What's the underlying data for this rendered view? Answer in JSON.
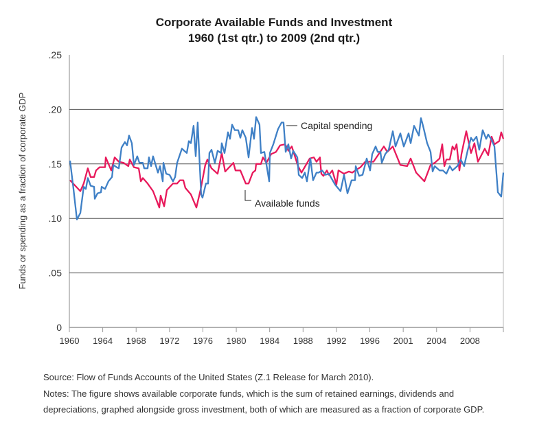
{
  "chart_data": {
    "type": "line",
    "title": "Corporate Available Funds and Investment",
    "subtitle": "1960 (1st qtr.) to 2009 (2nd qtr.)",
    "xlabel": "",
    "ylabel": "Funds or spending as a fraction of corporate GDP",
    "xlim": [
      1960,
      2009.5
    ],
    "ylim": [
      0,
      0.25
    ],
    "x_tick_labels": [
      "1960",
      "1964",
      "1968",
      "1972",
      "1976",
      "1980",
      "1984",
      "1988",
      "1992",
      "1996",
      "2001",
      "2004",
      "2008"
    ],
    "y_ticks": [
      0,
      0.05,
      0.1,
      0.15,
      0.2,
      0.25
    ],
    "y_tick_labels": [
      "0",
      ".05",
      ".10",
      ".15",
      ".20",
      ".25"
    ],
    "grid": "horizontal",
    "colors": {
      "capital_spending": "#3f80c6",
      "available_funds": "#e8195b",
      "grid": "#555555"
    },
    "series": [
      {
        "name": "Capital spending",
        "color": "#3f80c6",
        "points": [
          [
            1960.08,
            0.153
          ],
          [
            1960.47,
            0.127
          ],
          [
            1960.86,
            0.099
          ],
          [
            1961.25,
            0.105
          ],
          [
            1961.64,
            0.129
          ],
          [
            1961.88,
            0.127
          ],
          [
            1962.11,
            0.137
          ],
          [
            1962.43,
            0.13
          ],
          [
            1962.82,
            0.129
          ],
          [
            1962.9,
            0.118
          ],
          [
            1963.21,
            0.123
          ],
          [
            1963.6,
            0.124
          ],
          [
            1963.68,
            0.129
          ],
          [
            1964.07,
            0.127
          ],
          [
            1964.46,
            0.134
          ],
          [
            1964.86,
            0.138
          ],
          [
            1965.01,
            0.149
          ],
          [
            1965.4,
            0.147
          ],
          [
            1965.64,
            0.146
          ],
          [
            1965.95,
            0.165
          ],
          [
            1966.34,
            0.17
          ],
          [
            1966.58,
            0.167
          ],
          [
            1966.81,
            0.176
          ],
          [
            1967.13,
            0.169
          ],
          [
            1967.36,
            0.149
          ],
          [
            1967.75,
            0.157
          ],
          [
            1967.99,
            0.151
          ],
          [
            1968.38,
            0.151
          ],
          [
            1968.54,
            0.146
          ],
          [
            1968.93,
            0.146
          ],
          [
            1969.08,
            0.156
          ],
          [
            1969.32,
            0.148
          ],
          [
            1969.55,
            0.157
          ],
          [
            1970.1,
            0.142
          ],
          [
            1970.34,
            0.148
          ],
          [
            1970.65,
            0.134
          ],
          [
            1970.73,
            0.151
          ],
          [
            1971.04,
            0.141
          ],
          [
            1971.43,
            0.14
          ],
          [
            1971.82,
            0.134
          ],
          [
            1972.06,
            0.138
          ],
          [
            1972.29,
            0.151
          ],
          [
            1972.84,
            0.164
          ],
          [
            1973.39,
            0.16
          ],
          [
            1973.63,
            0.171
          ],
          [
            1973.86,
            0.169
          ],
          [
            1974.17,
            0.185
          ],
          [
            1974.41,
            0.157
          ],
          [
            1974.64,
            0.188
          ],
          [
            1975.03,
            0.122
          ],
          [
            1975.19,
            0.119
          ],
          [
            1975.58,
            0.132
          ],
          [
            1975.82,
            0.132
          ],
          [
            1975.97,
            0.16
          ],
          [
            1976.21,
            0.163
          ],
          [
            1976.6,
            0.151
          ],
          [
            1976.91,
            0.162
          ],
          [
            1977.3,
            0.16
          ],
          [
            1977.38,
            0.169
          ],
          [
            1977.7,
            0.16
          ],
          [
            1978.09,
            0.179
          ],
          [
            1978.32,
            0.173
          ],
          [
            1978.56,
            0.186
          ],
          [
            1978.87,
            0.181
          ],
          [
            1979.26,
            0.181
          ],
          [
            1979.5,
            0.174
          ],
          [
            1979.73,
            0.181
          ],
          [
            1980.12,
            0.174
          ],
          [
            1980.44,
            0.156
          ],
          [
            1980.83,
            0.183
          ],
          [
            1981.06,
            0.173
          ],
          [
            1981.3,
            0.193
          ],
          [
            1981.69,
            0.186
          ],
          [
            1981.85,
            0.16
          ],
          [
            1982.24,
            0.161
          ],
          [
            1982.79,
            0.134
          ],
          [
            1982.87,
            0.16
          ],
          [
            1983.26,
            0.168
          ],
          [
            1983.8,
            0.182
          ],
          [
            1984.2,
            0.188
          ],
          [
            1984.43,
            0.188
          ],
          [
            1984.67,
            0.161
          ],
          [
            1984.98,
            0.168
          ],
          [
            1985.29,
            0.155
          ],
          [
            1985.53,
            0.162
          ],
          [
            1986.0,
            0.156
          ],
          [
            1986.16,
            0.14
          ],
          [
            1986.55,
            0.137
          ],
          [
            1986.86,
            0.142
          ],
          [
            1987.1,
            0.134
          ],
          [
            1987.49,
            0.155
          ],
          [
            1987.8,
            0.135
          ],
          [
            1988.19,
            0.142
          ],
          [
            1988.43,
            0.142
          ],
          [
            1988.82,
            0.144
          ],
          [
            1989.21,
            0.14
          ],
          [
            1989.6,
            0.141
          ],
          [
            1990.31,
            0.131
          ],
          [
            1990.93,
            0.125
          ],
          [
            1991.33,
            0.14
          ],
          [
            1991.72,
            0.123
          ],
          [
            1992.19,
            0.135
          ],
          [
            1992.58,
            0.135
          ],
          [
            1992.66,
            0.148
          ],
          [
            1993.05,
            0.139
          ],
          [
            1993.44,
            0.14
          ],
          [
            1993.91,
            0.155
          ],
          [
            1994.3,
            0.144
          ],
          [
            1994.54,
            0.159
          ],
          [
            1994.93,
            0.166
          ],
          [
            1995.17,
            0.161
          ],
          [
            1995.48,
            0.161
          ],
          [
            1995.64,
            0.151
          ],
          [
            1996.03,
            0.159
          ],
          [
            1996.42,
            0.163
          ],
          [
            1996.89,
            0.18
          ],
          [
            1997.2,
            0.166
          ],
          [
            1997.75,
            0.178
          ],
          [
            1998.14,
            0.166
          ],
          [
            1998.69,
            0.178
          ],
          [
            1998.93,
            0.169
          ],
          [
            1999.32,
            0.185
          ],
          [
            1999.87,
            0.176
          ],
          [
            2000.1,
            0.192
          ],
          [
            2000.34,
            0.185
          ],
          [
            2000.81,
            0.169
          ],
          [
            2001.2,
            0.161
          ],
          [
            2001.43,
            0.143
          ],
          [
            2001.67,
            0.148
          ],
          [
            2002.22,
            0.144
          ],
          [
            2002.61,
            0.144
          ],
          [
            2003.0,
            0.141
          ],
          [
            2003.39,
            0.148
          ],
          [
            2003.7,
            0.144
          ],
          [
            2004.25,
            0.148
          ],
          [
            2004.64,
            0.154
          ],
          [
            2005.03,
            0.148
          ],
          [
            2005.42,
            0.162
          ],
          [
            2005.81,
            0.174
          ],
          [
            2006.05,
            0.171
          ],
          [
            2006.44,
            0.175
          ],
          [
            2006.75,
            0.163
          ],
          [
            2007.14,
            0.181
          ],
          [
            2007.54,
            0.173
          ],
          [
            2007.77,
            0.177
          ],
          [
            2008.16,
            0.172
          ],
          [
            2008.48,
            0.166
          ],
          [
            2008.87,
            0.124
          ],
          [
            2009.26,
            0.12
          ],
          [
            2009.5,
            0.142
          ]
        ]
      },
      {
        "name": "Available funds",
        "color": "#e8195b",
        "points": [
          [
            1960.08,
            0.135
          ],
          [
            1961.25,
            0.125
          ],
          [
            1961.64,
            0.132
          ],
          [
            1962.11,
            0.146
          ],
          [
            1962.43,
            0.138
          ],
          [
            1962.82,
            0.138
          ],
          [
            1963.05,
            0.144
          ],
          [
            1963.45,
            0.147
          ],
          [
            1964.07,
            0.147
          ],
          [
            1964.15,
            0.156
          ],
          [
            1964.78,
            0.144
          ],
          [
            1965.17,
            0.156
          ],
          [
            1965.64,
            0.152
          ],
          [
            1966.19,
            0.151
          ],
          [
            1966.73,
            0.148
          ],
          [
            1966.89,
            0.154
          ],
          [
            1967.36,
            0.147
          ],
          [
            1967.91,
            0.146
          ],
          [
            1968.15,
            0.134
          ],
          [
            1968.38,
            0.137
          ],
          [
            1968.93,
            0.132
          ],
          [
            1969.55,
            0.125
          ],
          [
            1970.26,
            0.11
          ],
          [
            1970.41,
            0.121
          ],
          [
            1970.81,
            0.111
          ],
          [
            1971.12,
            0.126
          ],
          [
            1971.82,
            0.132
          ],
          [
            1972.29,
            0.132
          ],
          [
            1972.61,
            0.135
          ],
          [
            1973.0,
            0.135
          ],
          [
            1973.23,
            0.128
          ],
          [
            1973.86,
            0.122
          ],
          [
            1974.49,
            0.11
          ],
          [
            1974.96,
            0.126
          ],
          [
            1975.5,
            0.149
          ],
          [
            1975.74,
            0.154
          ],
          [
            1976.21,
            0.146
          ],
          [
            1976.91,
            0.141
          ],
          [
            1977.38,
            0.16
          ],
          [
            1977.77,
            0.143
          ],
          [
            1978.71,
            0.151
          ],
          [
            1978.95,
            0.144
          ],
          [
            1979.5,
            0.144
          ],
          [
            1980.12,
            0.132
          ],
          [
            1980.44,
            0.132
          ],
          [
            1980.91,
            0.142
          ],
          [
            1981.22,
            0.144
          ],
          [
            1981.3,
            0.15
          ],
          [
            1981.85,
            0.15
          ],
          [
            1982.08,
            0.156
          ],
          [
            1982.47,
            0.151
          ],
          [
            1983.02,
            0.159
          ],
          [
            1983.57,
            0.161
          ],
          [
            1984.04,
            0.167
          ],
          [
            1984.59,
            0.168
          ],
          [
            1984.75,
            0.166
          ],
          [
            1984.98,
            0.162
          ],
          [
            1985.37,
            0.166
          ],
          [
            1986.08,
            0.148
          ],
          [
            1986.47,
            0.142
          ],
          [
            1987.41,
            0.155
          ],
          [
            1987.88,
            0.156
          ],
          [
            1988.19,
            0.152
          ],
          [
            1988.58,
            0.156
          ],
          [
            1988.74,
            0.141
          ],
          [
            1988.98,
            0.139
          ],
          [
            1989.37,
            0.144
          ],
          [
            1989.6,
            0.14
          ],
          [
            1989.99,
            0.144
          ],
          [
            1990.46,
            0.131
          ],
          [
            1990.69,
            0.144
          ],
          [
            1991.32,
            0.141
          ],
          [
            1991.87,
            0.143
          ],
          [
            1992.26,
            0.142
          ],
          [
            1992.81,
            0.145
          ],
          [
            1993.2,
            0.147
          ],
          [
            1993.75,
            0.152
          ],
          [
            1994.69,
            0.152
          ],
          [
            1995.87,
            0.166
          ],
          [
            1996.26,
            0.161
          ],
          [
            1996.89,
            0.166
          ],
          [
            1997.75,
            0.149
          ],
          [
            1998.53,
            0.148
          ],
          [
            1998.93,
            0.155
          ],
          [
            1999.55,
            0.142
          ],
          [
            2000.49,
            0.134
          ],
          [
            2001.2,
            0.149
          ],
          [
            2001.67,
            0.151
          ],
          [
            2002.22,
            0.155
          ],
          [
            2002.53,
            0.168
          ],
          [
            2002.77,
            0.148
          ],
          [
            2003.0,
            0.154
          ],
          [
            2003.39,
            0.154
          ],
          [
            2003.7,
            0.166
          ],
          [
            2003.94,
            0.163
          ],
          [
            2004.17,
            0.168
          ],
          [
            2004.49,
            0.144
          ],
          [
            2004.72,
            0.159
          ],
          [
            2005.27,
            0.18
          ],
          [
            2005.81,
            0.16
          ],
          [
            2006.2,
            0.169
          ],
          [
            2006.6,
            0.152
          ],
          [
            2007.38,
            0.164
          ],
          [
            2007.77,
            0.158
          ],
          [
            2008.16,
            0.175
          ],
          [
            2008.48,
            0.168
          ],
          [
            2009.03,
            0.171
          ],
          [
            2009.26,
            0.179
          ],
          [
            2009.5,
            0.173
          ]
        ]
      }
    ],
    "annotations": [
      "Capital spending",
      "Available funds"
    ]
  },
  "notes": {
    "source": "Source: Flow of Funds Accounts of the United States (Z.1 Release for March 2010).",
    "line1": "Notes: The figure shows available corporate funds, which is the sum of retained earnings, dividends and",
    "line2": "depreciations, graphed alongside gross investment, both of which are measured as a fraction of corporate GDP."
  }
}
